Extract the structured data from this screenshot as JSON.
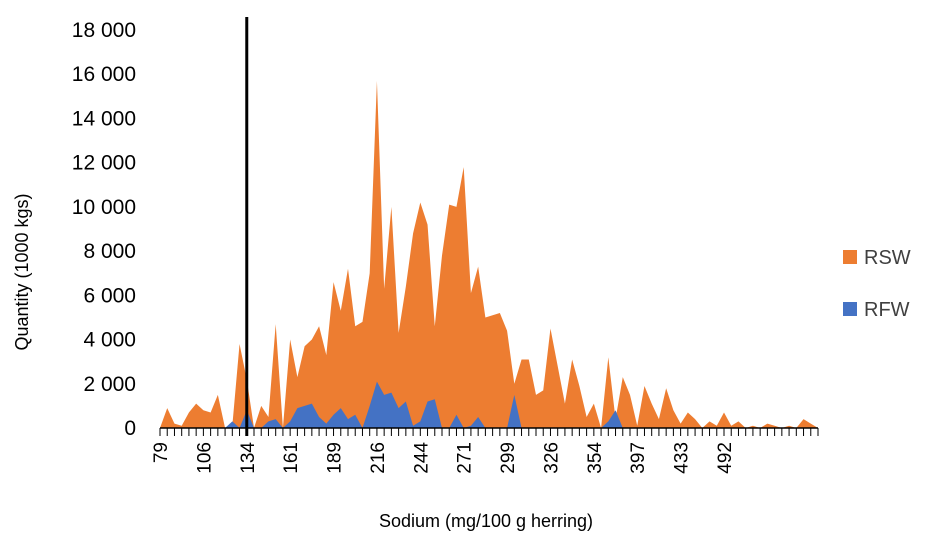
{
  "chart_data": {
    "type": "area",
    "xlabel": "Sodium (mg/100 g herring)",
    "ylabel": "Quantity (1000 kgs)",
    "ylim": [
      0,
      18000
    ],
    "y_ticks": [
      0,
      2000,
      4000,
      6000,
      8000,
      10000,
      12000,
      14000,
      16000,
      18000
    ],
    "y_tick_labels": [
      "0",
      "2 000",
      "4 000",
      "6 000",
      "8 000",
      "10 000",
      "12 000",
      "14 000",
      "16 000",
      "18 000"
    ],
    "x_tick_labels": [
      {
        "index": 0,
        "label": "79"
      },
      {
        "index": 6,
        "label": "106"
      },
      {
        "index": 12,
        "label": "134"
      },
      {
        "index": 18,
        "label": "161"
      },
      {
        "index": 24,
        "label": "189"
      },
      {
        "index": 30,
        "label": "216"
      },
      {
        "index": 36,
        "label": "244"
      },
      {
        "index": 42,
        "label": "271"
      },
      {
        "index": 48,
        "label": "299"
      },
      {
        "index": 54,
        "label": "326"
      },
      {
        "index": 60,
        "label": "354"
      },
      {
        "index": 66,
        "label": "397"
      },
      {
        "index": 72,
        "label": "433"
      },
      {
        "index": 78,
        "label": "492"
      }
    ],
    "vertical_marker": {
      "at_label": "134"
    },
    "legend_position": "right",
    "grid": false,
    "series": [
      {
        "name": "RSW",
        "color": "#ED7D31",
        "values": [
          0,
          900,
          200,
          100,
          700,
          1100,
          800,
          700,
          1500,
          0,
          100,
          3800,
          2200,
          0,
          1000,
          500,
          4700,
          0,
          4000,
          2300,
          3700,
          4000,
          4600,
          3300,
          6600,
          5300,
          7200,
          4600,
          4800,
          7000,
          15700,
          6300,
          10000,
          4300,
          6400,
          8800,
          10200,
          9200,
          4600,
          7800,
          10100,
          10000,
          11800,
          6100,
          7300,
          5000,
          5100,
          5200,
          4400,
          2000,
          3100,
          3100,
          1500,
          1700,
          4500,
          2800,
          1100,
          3100,
          1900,
          500,
          1100,
          0,
          3200,
          400,
          2300,
          1500,
          100,
          1900,
          1100,
          400,
          1800,
          800,
          200,
          700,
          400,
          0,
          300,
          100,
          700,
          100,
          300,
          0,
          100,
          0,
          200,
          100,
          0,
          100,
          0,
          400,
          200,
          0
        ]
      },
      {
        "name": "RFW",
        "color": "#4472C4",
        "values": [
          0,
          0,
          0,
          0,
          0,
          0,
          0,
          0,
          0,
          0,
          300,
          0,
          800,
          0,
          0,
          300,
          400,
          0,
          300,
          900,
          1000,
          1100,
          500,
          200,
          600,
          900,
          400,
          600,
          0,
          1000,
          2100,
          1500,
          1600,
          900,
          1200,
          100,
          300,
          1200,
          1300,
          0,
          0,
          600,
          0,
          100,
          500,
          0,
          0,
          0,
          0,
          1500,
          0,
          0,
          0,
          0,
          0,
          0,
          0,
          0,
          0,
          0,
          0,
          0,
          300,
          800,
          0,
          0,
          0,
          0,
          0,
          0,
          0,
          0,
          0,
          0,
          0,
          0,
          0,
          0,
          0,
          0,
          0,
          0,
          0,
          0,
          0,
          0,
          0,
          0,
          0,
          0,
          0,
          0
        ]
      }
    ]
  }
}
